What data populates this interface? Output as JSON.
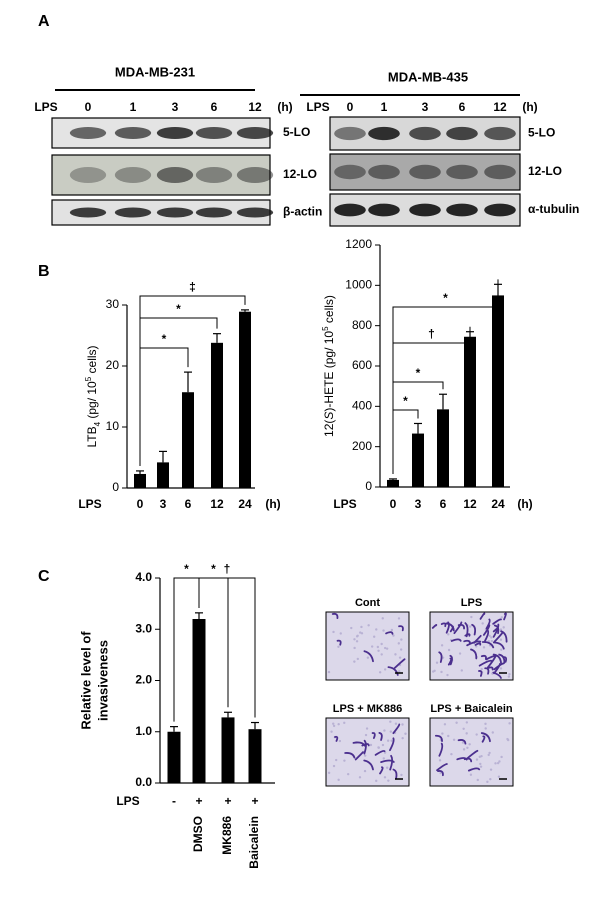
{
  "panel_labels": [
    "A",
    "B",
    "C"
  ],
  "blots": [
    {
      "title": "MDA-MB-231",
      "treatment_label": "LPS",
      "lanes": [
        "0",
        "1",
        "3",
        "6",
        "12"
      ],
      "time_unit": "(h)",
      "proteins": [
        "5-LO",
        "12-LO",
        "β-actin"
      ]
    },
    {
      "title": "MDA-MB-435",
      "treatment_label": "LPS",
      "lanes": [
        "0",
        "1",
        "3",
        "6",
        "12"
      ],
      "time_unit": "(h)",
      "proteins": [
        "5-LO",
        "12-LO",
        "α-tubulin"
      ]
    }
  ],
  "chart_data": [
    {
      "type": "bar",
      "color": "#000000",
      "y_label": [
        [
          {
            "text": "LTB"
          },
          {
            "text": "4",
            "style": "sub"
          },
          {
            "text": " (pg/ 10"
          },
          {
            "text": "5",
            "style": "sup"
          },
          {
            "text": " cells)"
          }
        ]
      ],
      "x_label": "LPS",
      "x_unit": "(h)",
      "categories": [
        "0",
        "3",
        "6",
        "12",
        "24"
      ],
      "values": [
        2.3,
        4.2,
        15.7,
        23.8,
        28.9
      ],
      "errors": [
        0.5,
        1.8,
        3.3,
        1.5,
        0.3
      ],
      "ylim": [
        0,
        30
      ],
      "yticks": [
        0,
        10,
        20,
        30
      ],
      "annotations": [
        {
          "from": 0,
          "to": 2,
          "text": "*"
        },
        {
          "from": 0,
          "to": 3,
          "text": "*"
        },
        {
          "from": 0,
          "to": 4,
          "text": "‡"
        }
      ]
    },
    {
      "type": "bar",
      "color": "#000000",
      "y_label": [
        [
          {
            "text": "12("
          },
          {
            "text": "S",
            "style": "italic"
          },
          {
            "text": ")-HETE (pg/ 10"
          },
          {
            "text": "5",
            "style": "sup"
          },
          {
            "text": " cells)"
          }
        ]
      ],
      "x_label": "LPS",
      "x_unit": "(h)",
      "categories": [
        "0",
        "3",
        "6",
        "12",
        "24"
      ],
      "values": [
        35,
        265,
        385,
        745,
        950
      ],
      "errors": [
        5,
        50,
        75,
        25,
        55
      ],
      "ylim": [
        0,
        1200
      ],
      "yticks": [
        0,
        200,
        400,
        600,
        800,
        1000,
        1200
      ],
      "annotations": [
        {
          "from": 0,
          "to": 1,
          "text": "*"
        },
        {
          "from": 0,
          "to": 2,
          "text": "*"
        },
        {
          "from": 0,
          "to": 3,
          "text": "†"
        },
        {
          "from": 0,
          "to": 4,
          "text": "*"
        }
      ]
    },
    {
      "type": "bar",
      "color": "#000000",
      "y_label": [
        [
          {
            "text": "Relative level of"
          }
        ],
        [
          {
            "text": "invasiveness"
          }
        ]
      ],
      "x_label": "LPS",
      "treatment": [
        "-",
        "+",
        "+",
        "+"
      ],
      "categories": [
        null,
        "DMSO",
        "MK886",
        "Baicalein"
      ],
      "values": [
        1.0,
        3.2,
        1.28,
        1.05
      ],
      "errors": [
        0.1,
        0.12,
        0.1,
        0.13
      ],
      "ylim": [
        0,
        4
      ],
      "yticks": [
        {
          "value": 0,
          "label": "0.0"
        },
        {
          "value": 1,
          "label": "1.0"
        },
        {
          "value": 2,
          "label": "2.0"
        },
        {
          "value": 3,
          "label": "3.0"
        },
        {
          "value": 4,
          "label": "4.0"
        }
      ],
      "annotations": [
        {
          "from": 0,
          "to": 1,
          "text": "*"
        },
        {
          "from": 1,
          "to": 2,
          "text": "*"
        },
        {
          "from": 1,
          "to": 3,
          "text": "†"
        }
      ]
    }
  ],
  "micrographs": {
    "labels": [
      "Cont",
      "LPS",
      "LPS + MK886",
      "LPS + Baicalein"
    ]
  }
}
